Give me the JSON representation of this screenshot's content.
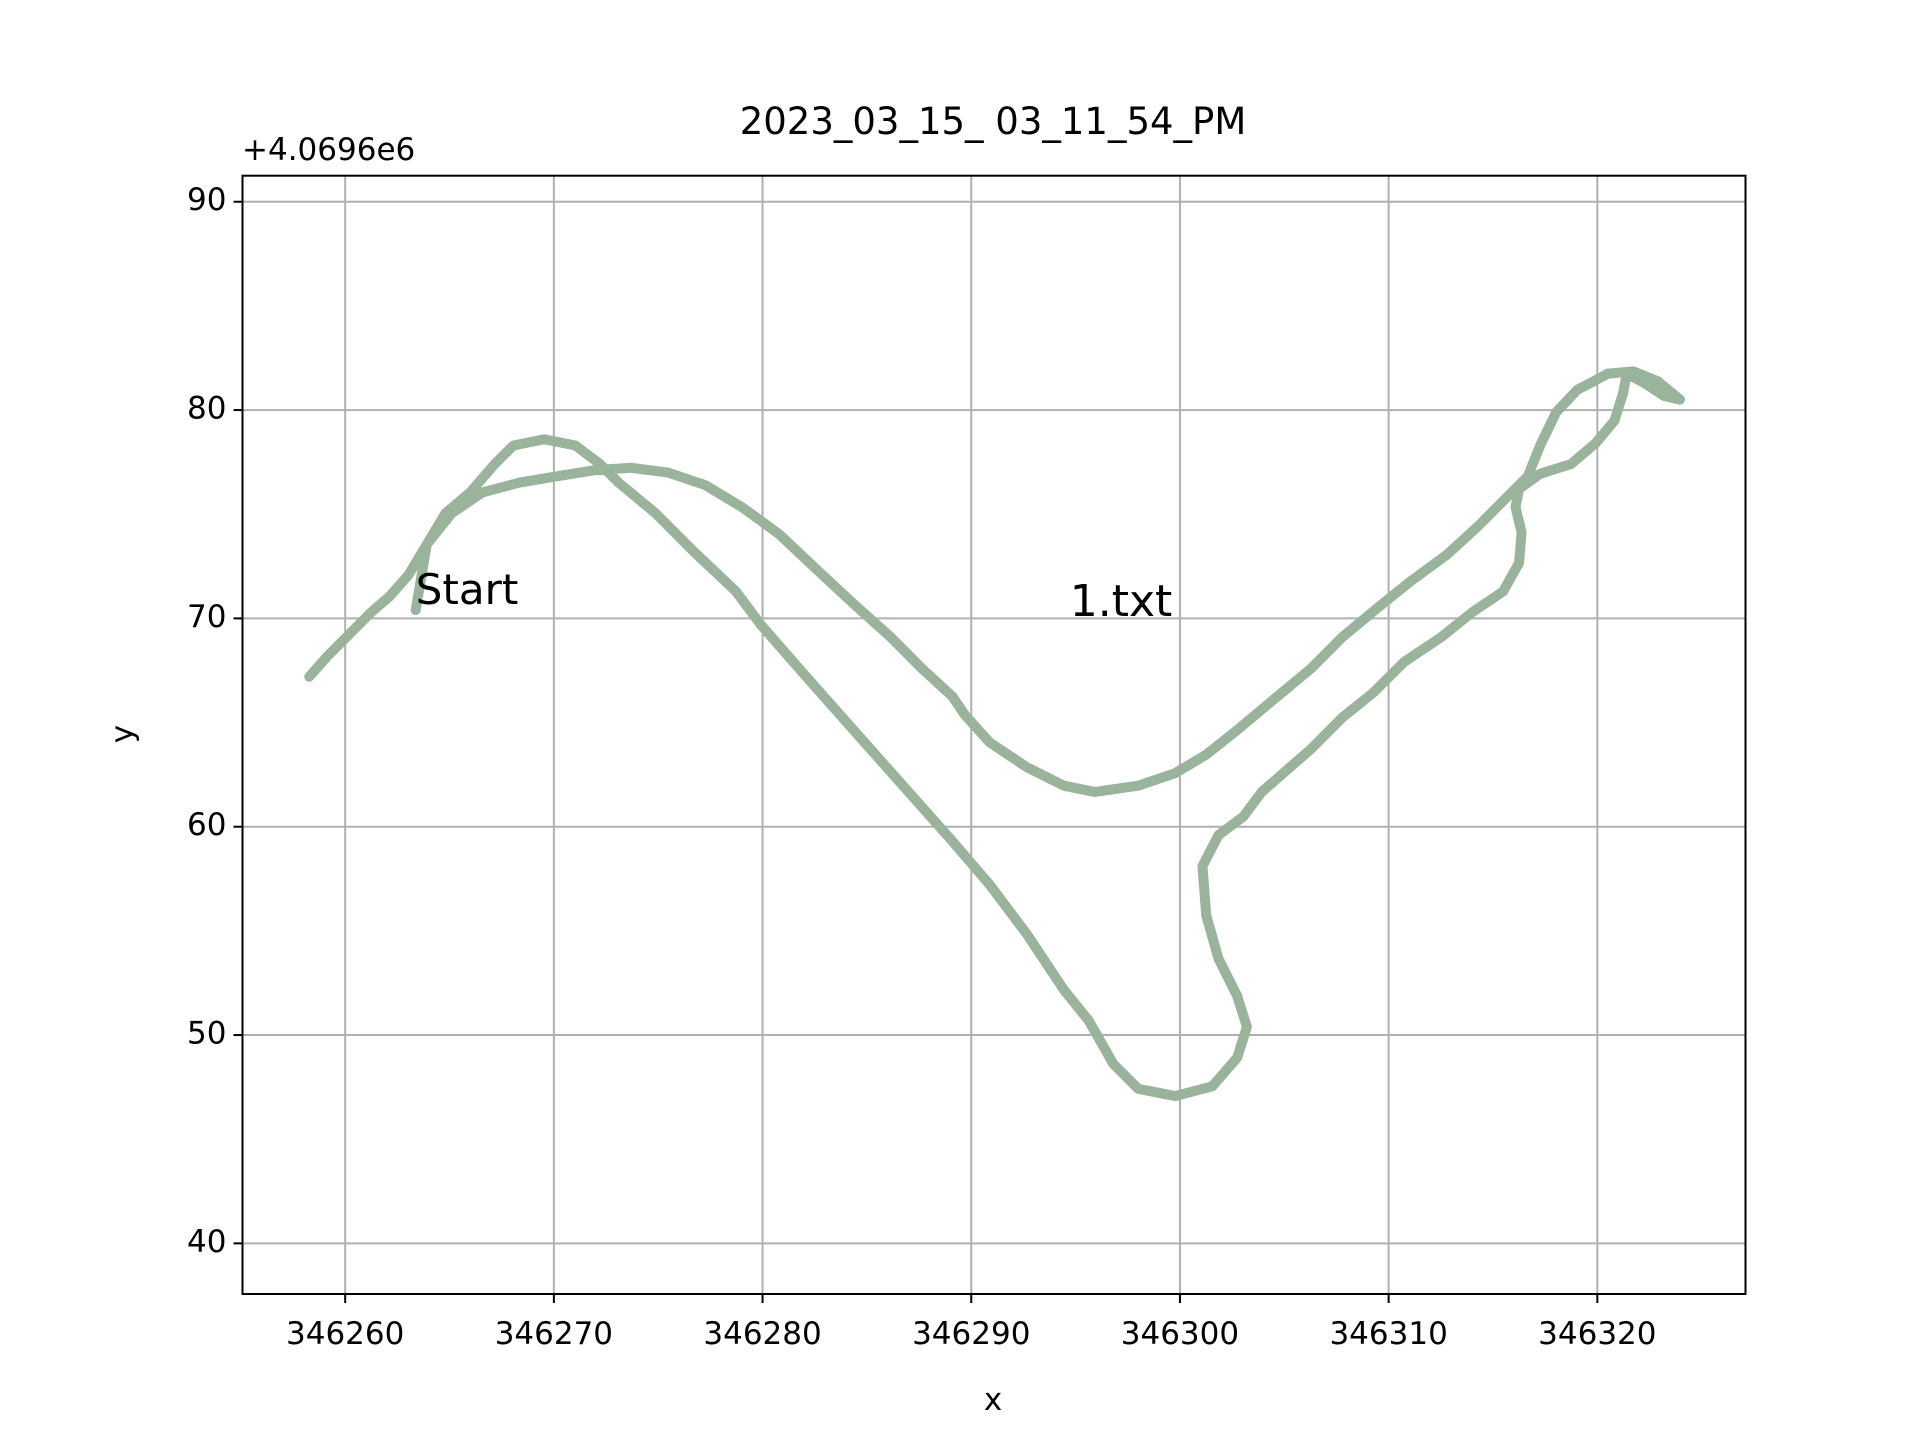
{
  "chart_data": {
    "type": "line",
    "title": "2023_03_15_ 03_11_54_PM",
    "x_label": "x",
    "y_label": "y",
    "y_offset_label": "+4.0696e6",
    "annotations": {
      "start": "Start",
      "file": "1.txt"
    },
    "annotation_colors": {
      "start": "#ff0000",
      "file": "#000000"
    },
    "xlim": [
      346255.08,
      346327.1
    ],
    "ylim": [
      37.57,
      91.25
    ],
    "xticks": [
      346260,
      346270,
      346280,
      346290,
      346300,
      346310,
      346320
    ],
    "yticks": [
      40,
      50,
      60,
      70,
      80,
      90
    ],
    "grid": true,
    "series": [
      {
        "color": "#9ab49c",
        "x": [
          346263.38,
          346263.91,
          346264.8,
          346265.99,
          346267.17,
          346268.06,
          346269.54,
          346271.03,
          346272.21,
          346273.1,
          346274.88,
          346276.66,
          346278.73,
          346279.92,
          346281.99,
          346284.36,
          346286.73,
          346289.1,
          346290.88,
          346292.66,
          346294.44,
          346295.63,
          346296.81,
          346298.0,
          346299.77,
          346301.55,
          346302.74,
          346303.21,
          346302.74,
          346301.85,
          346301.26,
          346301.08,
          346301.85,
          346303.04,
          346303.92,
          346306.3,
          346307.78,
          346309.26,
          346310.74,
          346312.52,
          346314.0,
          346315.48,
          346316.25,
          346316.37,
          346316.08,
          346316.25,
          346317.26,
          346318.74,
          346319.93,
          346320.82,
          346321.23,
          346321.41,
          346322.3,
          346323.19,
          346323.96,
          346322.89,
          346321.71,
          346320.52,
          346319.04,
          346318.03,
          346317.26,
          346316.67,
          346315.48,
          346314.3,
          346312.82,
          346311.04,
          346309.56,
          346307.78,
          346306.3,
          346304.52,
          346302.74,
          346301.26,
          346299.77,
          346298.0,
          346295.92,
          346294.44,
          346292.66,
          346290.88,
          346289.7,
          346289.1,
          346287.62,
          346286.14,
          346284.36,
          346282.58,
          346280.81,
          346279.03,
          346277.25,
          346275.47,
          346273.69,
          346271.91,
          346270.14,
          346268.36,
          346266.58,
          346265.1,
          346263.91,
          346263.02,
          346262.13,
          346261.24,
          346260.06,
          346259.17,
          346258.28
        ],
        "values": [
          70.4,
          73.55,
          75.04,
          76.05,
          77.41,
          78.3,
          78.6,
          78.3,
          77.41,
          76.52,
          75.04,
          73.25,
          71.29,
          69.69,
          67.32,
          64.64,
          61.97,
          59.3,
          57.22,
          54.85,
          52.17,
          50.69,
          48.61,
          47.42,
          47.07,
          47.54,
          48.91,
          50.39,
          51.88,
          53.66,
          55.74,
          58.11,
          59.6,
          60.49,
          61.67,
          63.75,
          65.24,
          66.43,
          67.91,
          69.1,
          70.29,
          71.29,
          72.66,
          74.14,
          75.33,
          76.22,
          76.94,
          77.41,
          78.42,
          79.49,
          80.8,
          81.75,
          81.27,
          80.68,
          80.5,
          81.39,
          81.86,
          81.75,
          80.97,
          79.9,
          78.3,
          76.82,
          75.63,
          74.44,
          73.08,
          71.77,
          70.58,
          69.1,
          67.61,
          66.13,
          64.64,
          63.46,
          62.57,
          61.97,
          61.67,
          61.97,
          62.86,
          64.05,
          65.36,
          66.25,
          67.61,
          69.1,
          70.7,
          72.36,
          74.03,
          75.33,
          76.4,
          77.0,
          77.23,
          77.11,
          76.82,
          76.52,
          76.05,
          75.04,
          73.55,
          72.07,
          71.06,
          70.29,
          69.1,
          68.21,
          67.2
        ]
      }
    ]
  }
}
